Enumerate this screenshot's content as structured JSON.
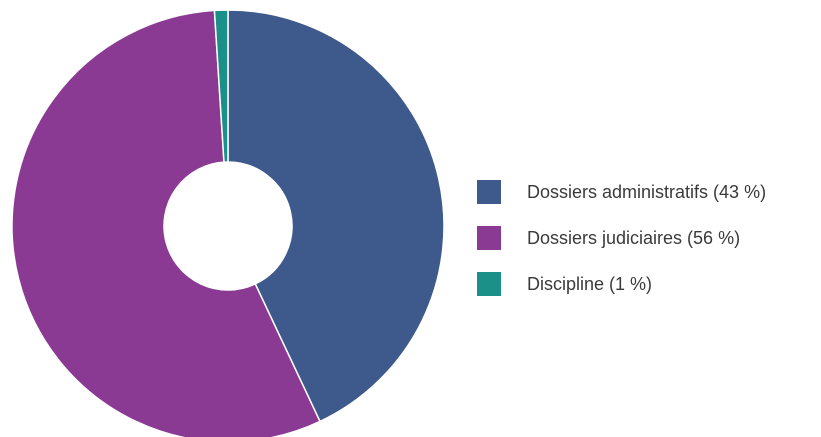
{
  "chart_data": {
    "type": "pie",
    "variant": "donut",
    "title": "",
    "legend_position": "right",
    "slices": [
      {
        "label": "Dossiers administratifs (43 %)",
        "name": "Dossiers administratifs",
        "value": 43,
        "color": "#3e5a8c"
      },
      {
        "label": "Dossiers judiciaires (56 %)",
        "name": "Dossiers judiciaires",
        "value": 56,
        "color": "#8b3a94"
      },
      {
        "label": "Discipline (1 %)",
        "name": "Discipline",
        "value": 1,
        "color": "#1a9089"
      }
    ]
  }
}
